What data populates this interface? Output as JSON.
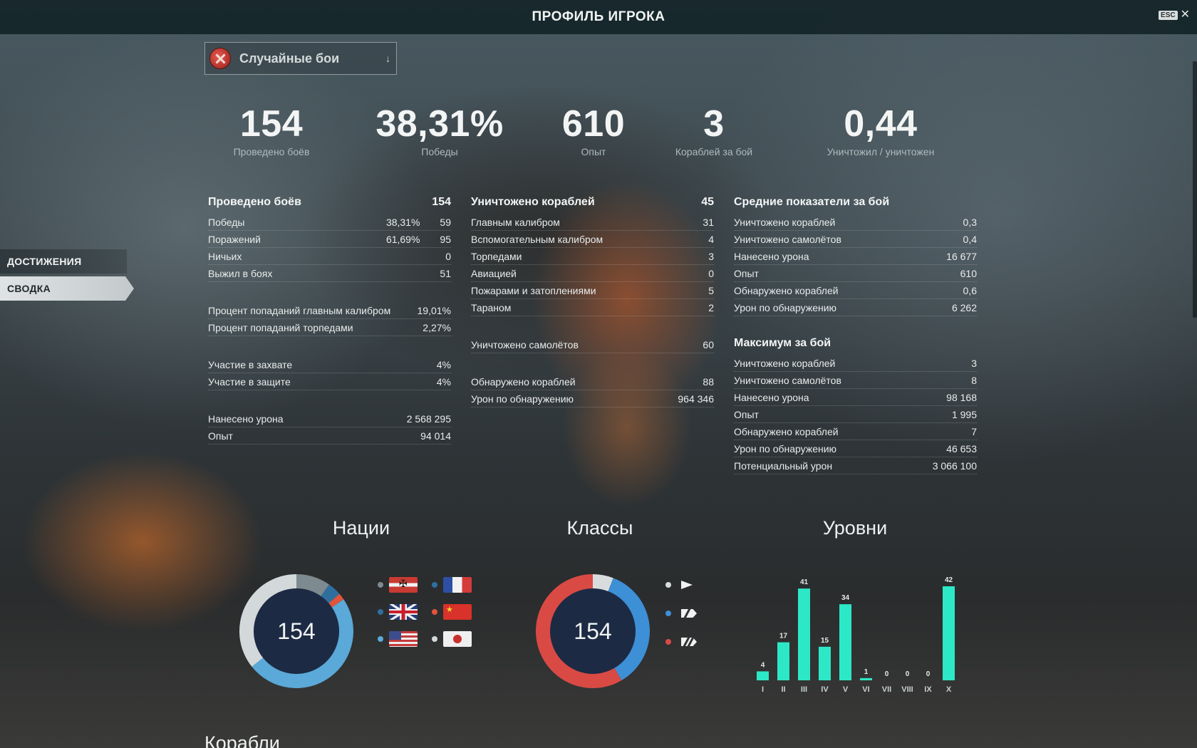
{
  "window": {
    "title": "ПРОФИЛЬ ИГРОКА",
    "esc_label": "ESC",
    "close_glyph": "✕"
  },
  "mode_select": {
    "value": "Случайные бои",
    "icon": "random-battles-icon"
  },
  "sidebar": {
    "items": [
      {
        "label": "ДОСТИЖЕНИЯ",
        "active": false
      },
      {
        "label": "СВОДКА",
        "active": true
      }
    ]
  },
  "summary": [
    {
      "value": "154",
      "label": "Проведено боёв"
    },
    {
      "value": "38,31%",
      "label": "Победы"
    },
    {
      "value": "610",
      "label": "Опыт"
    },
    {
      "value": "3",
      "label": "Кораблей за бой"
    },
    {
      "value": "0,44",
      "label": "Уничтожил / уничтожен"
    }
  ],
  "battles": {
    "header": {
      "label": "Проведено боёв",
      "value": "154"
    },
    "group1": [
      {
        "label": "Победы",
        "pct": "38,31%",
        "value": "59"
      },
      {
        "label": "Поражений",
        "pct": "61,69%",
        "value": "95"
      },
      {
        "label": "Ничьих",
        "pct": "",
        "value": "0"
      },
      {
        "label": "Выжил в боях",
        "pct": "",
        "value": "51"
      }
    ],
    "group2": [
      {
        "label": "Процент попаданий главным калибром",
        "value": "19,01%"
      },
      {
        "label": "Процент попаданий торпедами",
        "value": "2,27%"
      }
    ],
    "group3": [
      {
        "label": "Участие в захвате",
        "value": "4%"
      },
      {
        "label": "Участие в защите",
        "value": "4%"
      }
    ],
    "group4": [
      {
        "label": "Нанесено урона",
        "value": "2 568 295"
      },
      {
        "label": "Опыт",
        "value": "94 014"
      }
    ]
  },
  "kills": {
    "header": {
      "label": "Уничтожено кораблей",
      "value": "45"
    },
    "group1": [
      {
        "label": "Главным калибром",
        "value": "31"
      },
      {
        "label": "Вспомогательным калибром",
        "value": "4"
      },
      {
        "label": "Торпедами",
        "value": "3"
      },
      {
        "label": "Авиацией",
        "value": "0"
      },
      {
        "label": "Пожарами и затоплениями",
        "value": "5"
      },
      {
        "label": "Тараном",
        "value": "2"
      }
    ],
    "group2": [
      {
        "label": "Уничтожено самолётов",
        "value": "60"
      }
    ],
    "group3": [
      {
        "label": "Обнаружено кораблей",
        "value": "88"
      },
      {
        "label": "Урон по обнаружению",
        "value": "964 346"
      }
    ]
  },
  "average": {
    "header": {
      "label": "Средние показатели за бой"
    },
    "rows": [
      {
        "label": "Уничтожено кораблей",
        "value": "0,3"
      },
      {
        "label": "Уничтожено самолётов",
        "value": "0,4"
      },
      {
        "label": "Нанесено урона",
        "value": "16 677"
      },
      {
        "label": "Опыт",
        "value": "610"
      },
      {
        "label": "Обнаружено кораблей",
        "value": "0,6"
      },
      {
        "label": "Урон по обнаружению",
        "value": "6 262"
      }
    ]
  },
  "maximum": {
    "header": {
      "label": "Максимум за бой"
    },
    "rows": [
      {
        "label": "Уничтожено кораблей",
        "value": "3"
      },
      {
        "label": "Уничтожено самолётов",
        "value": "8"
      },
      {
        "label": "Нанесено урона",
        "value": "98 168"
      },
      {
        "label": "Опыт",
        "value": "1 995"
      },
      {
        "label": "Обнаружено кораблей",
        "value": "7"
      },
      {
        "label": "Урон по обнаружению",
        "value": "46 653"
      },
      {
        "label": "Потенциальный урон",
        "value": "3 066 100"
      }
    ]
  },
  "sections": {
    "nations": "Нации",
    "classes": "Классы",
    "tiers": "Уровни",
    "ships": "Корабли"
  },
  "chart_data": [
    {
      "type": "pie",
      "title": "Нации",
      "center_label": "154",
      "segments": [
        {
          "nation": "Германия",
          "value": 15,
          "color": "#7d8a90",
          "flag": "germany-flag-icon"
        },
        {
          "nation": "Великобритания",
          "value": 6,
          "color": "#2f6fa0",
          "flag": "uk-flag-icon"
        },
        {
          "nation": "Китай",
          "value": 3,
          "color": "#e0543c",
          "flag": "china-flag-icon"
        },
        {
          "nation": "США",
          "value": 75,
          "color": "#5aa9d8",
          "flag": "usa-flag-icon"
        },
        {
          "nation": "Япония",
          "value": 55,
          "color": "#d3d8da",
          "flag": "japan-flag-icon"
        },
        {
          "nation": "Франция",
          "value": 0,
          "color": "#2f6fa0",
          "flag": "france-flag-icon"
        }
      ]
    },
    {
      "type": "pie",
      "title": "Классы",
      "center_label": "154",
      "segments": [
        {
          "class": "Эсминцы",
          "value": 9,
          "color": "#d9dcdd",
          "icon": "destroyer-class-icon"
        },
        {
          "class": "Крейсеры",
          "value": 55,
          "color": "#3d8fd6",
          "icon": "cruiser-class-icon"
        },
        {
          "class": "Линкоры",
          "value": 90,
          "color": "#d94a45",
          "icon": "battleship-class-icon"
        }
      ]
    },
    {
      "type": "bar",
      "title": "Уровни",
      "categories": [
        "I",
        "II",
        "III",
        "IV",
        "V",
        "VI",
        "VII",
        "VIII",
        "IX",
        "X"
      ],
      "values": [
        4,
        17,
        41,
        15,
        34,
        1,
        0,
        0,
        0,
        42
      ],
      "color": "#2de8c7"
    }
  ]
}
